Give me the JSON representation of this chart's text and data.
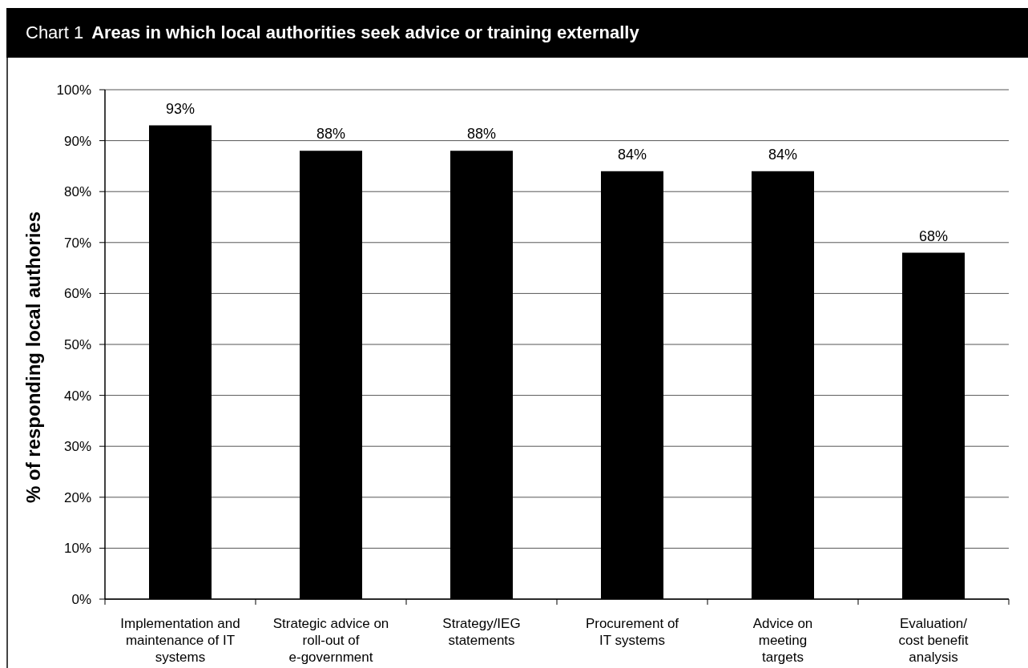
{
  "chart_data": {
    "type": "bar",
    "title": "Areas in which local authorities seek advice or training externally",
    "annotations": [
      "Chart 1"
    ],
    "ylabel": "% of responding local authories",
    "categories": [
      "Implementation and\nmaintenance of IT\nsystems",
      "Strategic advice on\nroll-out of\ne-government",
      "Strategy/IEG\nstatements",
      "Procurement of\nIT systems",
      "Advice on\nmeeting\ntargets",
      "Evaluation/\ncost benefit\nanalysis"
    ],
    "values": [
      93,
      88,
      88,
      84,
      84,
      68
    ],
    "value_labels": [
      "93%",
      "88%",
      "88%",
      "84%",
      "84%",
      "68%"
    ],
    "color": "#000000",
    "ylim": [
      0,
      100
    ],
    "yticks": [
      {
        "value": 0,
        "label": "0%"
      },
      {
        "value": 10,
        "label": "10%"
      },
      {
        "value": 20,
        "label": "20%"
      },
      {
        "value": 30,
        "label": "30%"
      },
      {
        "value": 40,
        "label": "40%"
      },
      {
        "value": 50,
        "label": "50%"
      },
      {
        "value": 60,
        "label": "60%"
      },
      {
        "value": 70,
        "label": "70%"
      },
      {
        "value": 80,
        "label": "80%"
      },
      {
        "value": 90,
        "label": "90%"
      },
      {
        "value": 100,
        "label": "100%"
      }
    ],
    "grid": "y"
  }
}
